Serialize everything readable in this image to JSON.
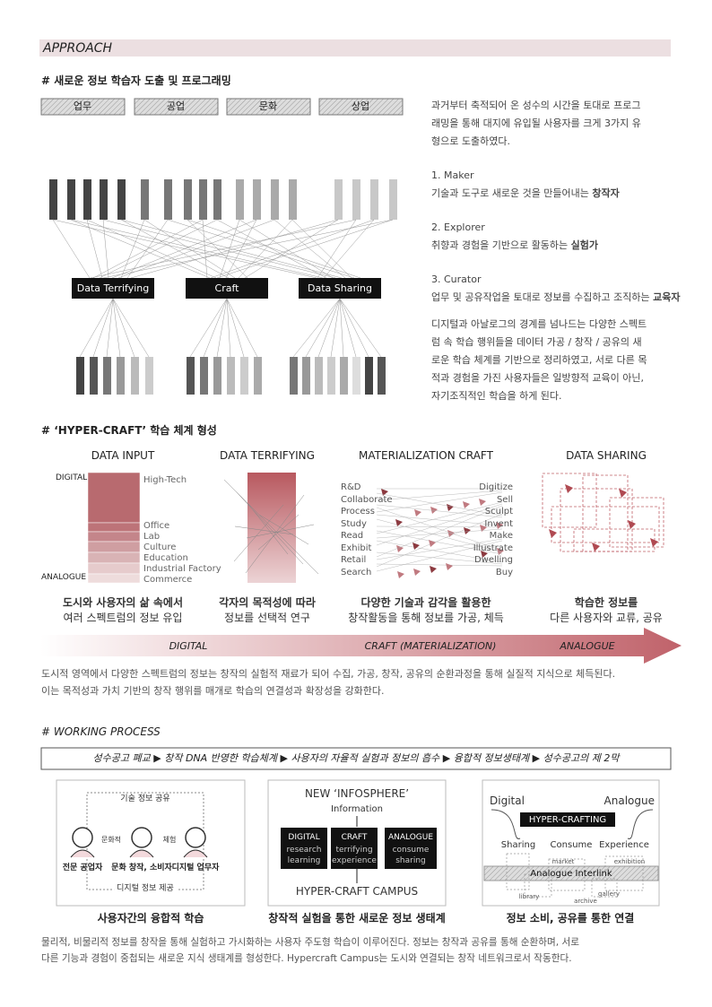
{
  "header": {
    "title": "APPROACH"
  },
  "section1": {
    "title": "# 새로운 정보 학습자 도출 및 프로그래밍",
    "categories": [
      "업무",
      "공업",
      "문화",
      "상업"
    ],
    "nodes": [
      "Data Terrifying",
      "Craft",
      "Data Sharing"
    ],
    "intro": [
      "과거부터 축적되어 온 성수의 시간을 토대로 프로그",
      "래밍을 통해 대지에 유입될 사용자를 크게 3가지 유",
      "형으로 도출하였다."
    ],
    "users": [
      {
        "number": "1. Maker",
        "text": "기술과 도구로 새로운 것을 만들어내는",
        "role": "창작자"
      },
      {
        "number": "2. Explorer",
        "text": "취향과 경험을 기반으로 활동하는",
        "role": "실험가"
      },
      {
        "number": "3. Curator",
        "text": "업무 및 공유작업을 토대로 정보를 수집하고 조직하는",
        "role": "교육자"
      }
    ],
    "closing": [
      "디지털과 아날로그의 경계를 넘나드는 다양한 스펙트",
      "럼 속 학습 행위들을 데이터 가공 / 창작 / 공유의 새",
      "로운 학습 체계를 기반으로 정리하였고, 서로 다른 목",
      "적과 경험을 가진 사용자들은 일방향적 교육이 아닌,",
      "자기조직적인 학습을 하게 된다."
    ]
  },
  "section2": {
    "title": "# ‘HYPER-CRAFT’ 학습 체계 형성",
    "columns": [
      {
        "title": "DATA INPUT",
        "caption": [
          "도시와 사용자의 삶 속에서",
          "여러 스펙트럼의 정보 유입"
        ]
      },
      {
        "title": "DATA TERRIFYING",
        "caption": [
          "각자의 목적성에 따라",
          "정보를 선택적 연구"
        ]
      },
      {
        "title": "MATERIALIZATION CRAFT",
        "caption": [
          "다양한 기술과 감각을 활용한",
          "창작활동을 통해 정보를 가공, 체득"
        ]
      },
      {
        "title": "DATA SHARING",
        "caption": [
          "학습한 정보를",
          "다른 사용자와 교류, 공유"
        ]
      }
    ],
    "input_ends": [
      "DIGITAL",
      "ANALOGUE"
    ],
    "input_layers": [
      "High-Tech",
      "Office",
      "Lab",
      "Culture",
      "Education",
      "Industrial Factory",
      "Commerce"
    ],
    "craft_left": [
      "R&D",
      "Collaborate",
      "Process",
      "Study",
      "Read",
      "Exhibit",
      "Retail",
      "Search"
    ],
    "craft_right": [
      "Digitize",
      "Sell",
      "Sculpt",
      "Invent",
      "Make",
      "Illustrate",
      "Dwelling",
      "Buy"
    ],
    "arrow": [
      "DIGITAL",
      "CRAFT (MATERIALIZATION)",
      "ANALOGUE"
    ],
    "paragraph": [
      "도시적 영역에서 다양한 스펙트럼의 정보는 창작의 실험적 재료가 되어 수집, 가공, 창작, 공유의 순환과정을 통해 실질적 지식으로 체득된다.",
      "이는 목적성과 가치 기반의 창작 행위를 매개로 학습의 연결성과 확장성을 강화한다."
    ]
  },
  "section3": {
    "title": "# WORKING PROCESS",
    "banner": "성수공고 폐교 ▶ 창작 DNA 반영한 학습체계 ▶ 사용자의 자율적 실험과 정보의 흡수  ▶ 융합적 정보생태계 ▶ 성수공고의 제 2막",
    "panel1": {
      "top": "기술 정보 공유",
      "bottom": "디지털 정보 제공",
      "links": [
        "문화적",
        "체험"
      ],
      "users": [
        "전문 공업자",
        "문화 창작, 소비자",
        "디지털 업무자"
      ],
      "caption": "사용자간의 융합적 학습"
    },
    "panel2": {
      "title": "NEW ‘INFOSPHERE’",
      "input": "Information",
      "boxes": [
        {
          "head": "DIGITAL",
          "lines": [
            "research",
            "learning"
          ]
        },
        {
          "head": "CRAFT",
          "lines": [
            "terrifying",
            "experience"
          ]
        },
        {
          "head": "ANALOGUE",
          "lines": [
            "consume",
            "sharing"
          ]
        }
      ],
      "output": "HYPER-CRAFT CAMPUS",
      "caption": "창작적 실험을 통한 새로운 정보 생태계"
    },
    "panel3": {
      "ends": [
        "Digital",
        "Analogue"
      ],
      "core": "HYPER-CRAFTING",
      "modes": [
        "Sharing",
        "Consume",
        "Experience"
      ],
      "interlink": "Analogue Interlink",
      "places": [
        "market",
        "exhibition",
        "library",
        "archive",
        "gallery"
      ],
      "caption": "정보 소비, 공유를 통한 연결"
    },
    "paragraph": [
      "물리적, 비물리적 정보를 창작을 통해 실험하고 가시화하는 사용자 주도형 학습이 이루어진다. 정보는 창작과 공유를 통해 순환하며, 서로",
      "다른 기능과 경험이 중첩되는 새로운 지식 생태계를 형성한다. Hypercraft Campus는 도시와 연결되는 창작 네트워크로서 작동한다."
    ]
  }
}
